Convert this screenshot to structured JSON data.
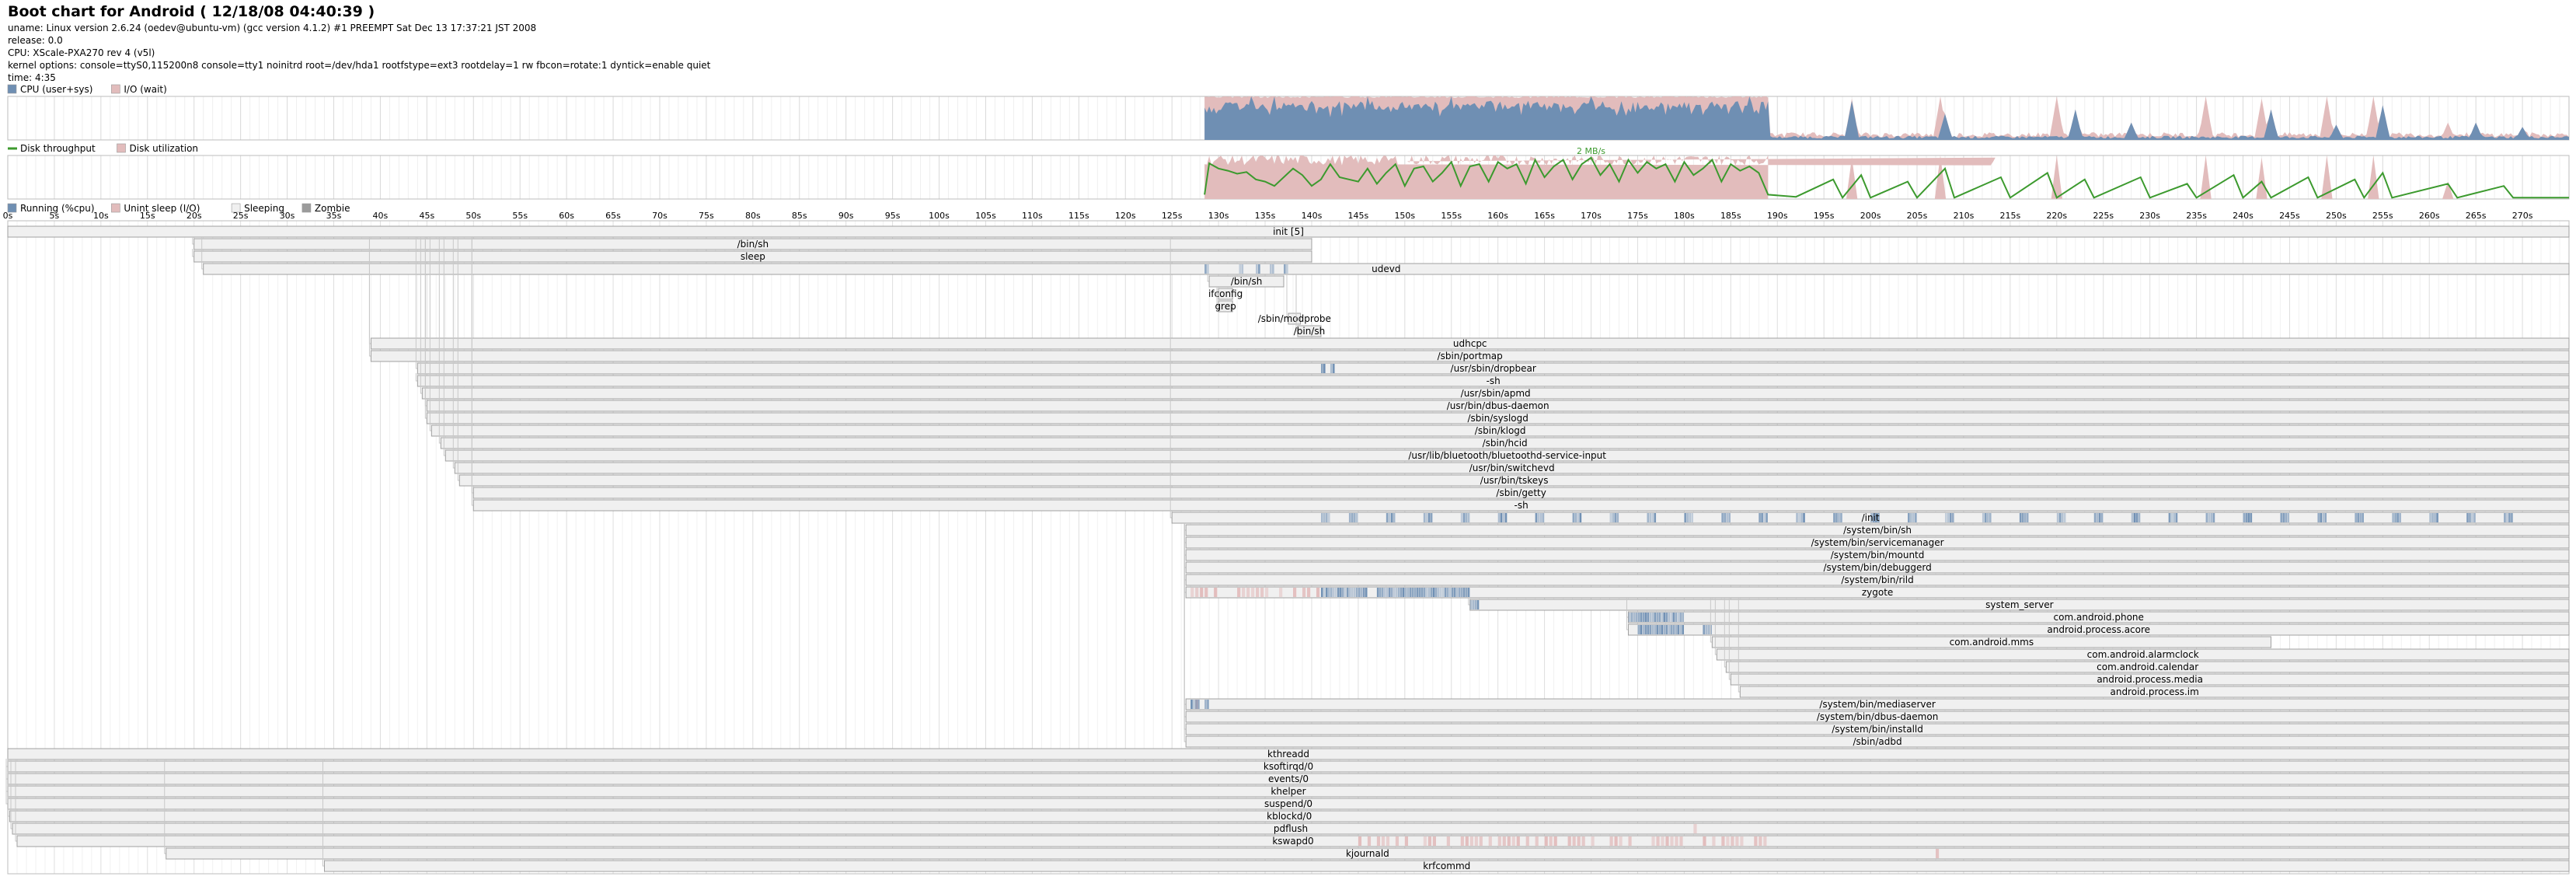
{
  "header": {
    "title": "Boot chart for Android ( 12/18/08 04:40:39 )",
    "uname": "uname: Linux version 2.6.24 (oedev@ubuntu-vm) (gcc version 4.1.2) #1 PREEMPT Sat Dec 13 17:37:21 JST 2008",
    "release": "release: 0.0",
    "cpu": "CPU: XScale-PXA270 rev 4 (v5l)",
    "kernel_options": "kernel options: console=ttyS0,115200n8 console=tty1 noinitrd root=/dev/hda1 rootfstype=ext3 rootdelay=1 rw fbcon=rotate:1 dyntick=enable quiet",
    "time": "time: 4:35"
  },
  "colors": {
    "cpu": "#6f8fb3",
    "io": "#e2bcbc",
    "disk_throughput": "#3c9a2e",
    "disk_util": "#e2bcbc",
    "running": "#6f8fb3",
    "unint_sleep": "#e2bcbc",
    "sleeping": "#f0f0f0",
    "zombie": "#9b9b9b",
    "process_border": "#a0a0a0",
    "grid": "#e6e6e6"
  },
  "chart_data": [
    {
      "type": "area",
      "name": "cpu-io-chart",
      "legend": [
        "CPU (user+sys)",
        "I/O (wait)"
      ],
      "x_unit": "s",
      "xlim": [
        0,
        275
      ],
      "ylim": [
        0,
        100
      ],
      "segments": [
        {
          "from": 128.5,
          "to": 189,
          "cpu_base": 90,
          "io_base": 97,
          "spiky": true
        },
        {
          "from": 189,
          "to": 275,
          "cpu_base": 8,
          "io_base": 12,
          "spiky": false
        }
      ],
      "cpu_peaks": [
        [
          133.5,
          100
        ],
        [
          136,
          100
        ],
        [
          140,
          80
        ],
        [
          146,
          100
        ],
        [
          155,
          100
        ],
        [
          170,
          100
        ],
        [
          187,
          100
        ],
        [
          198,
          90
        ],
        [
          208,
          60
        ],
        [
          222,
          70
        ],
        [
          228,
          40
        ],
        [
          243,
          70
        ],
        [
          250,
          35
        ],
        [
          255,
          80
        ],
        [
          265,
          40
        ],
        [
          270,
          30
        ]
      ],
      "io_peaks": [
        [
          143,
          100
        ],
        [
          152,
          100
        ],
        [
          164,
          100
        ],
        [
          176,
          100
        ],
        [
          198,
          95
        ],
        [
          207.5,
          100
        ],
        [
          220,
          100
        ],
        [
          236,
          100
        ],
        [
          242,
          95
        ],
        [
          249,
          100
        ],
        [
          254,
          100
        ],
        [
          262,
          40
        ]
      ]
    },
    {
      "type": "line",
      "name": "disk-chart",
      "legend": [
        "Disk throughput",
        "Disk utilization"
      ],
      "x_unit": "s",
      "xlim": [
        0,
        275
      ],
      "ylim": [
        0,
        100
      ],
      "max_throughput_label": "2 MB/s",
      "max_throughput_at": 170,
      "points": [
        [
          128.5,
          10
        ],
        [
          129,
          82
        ],
        [
          130,
          70
        ],
        [
          131,
          65
        ],
        [
          132,
          58
        ],
        [
          133,
          62
        ],
        [
          134,
          45
        ],
        [
          135,
          40
        ],
        [
          136,
          30
        ],
        [
          137,
          50
        ],
        [
          138,
          70
        ],
        [
          139,
          55
        ],
        [
          140,
          30
        ],
        [
          141,
          45
        ],
        [
          142,
          80
        ],
        [
          143,
          50
        ],
        [
          144,
          45
        ],
        [
          145,
          40
        ],
        [
          146,
          70
        ],
        [
          147,
          35
        ],
        [
          148,
          60
        ],
        [
          149,
          80
        ],
        [
          150,
          30
        ],
        [
          151,
          70
        ],
        [
          152,
          75
        ],
        [
          153,
          40
        ],
        [
          154,
          60
        ],
        [
          155,
          85
        ],
        [
          156,
          30
        ],
        [
          157,
          75
        ],
        [
          158,
          80
        ],
        [
          159,
          40
        ],
        [
          160,
          85
        ],
        [
          161,
          70
        ],
        [
          162,
          80
        ],
        [
          163,
          35
        ],
        [
          164,
          90
        ],
        [
          165,
          50
        ],
        [
          166,
          75
        ],
        [
          167,
          90
        ],
        [
          168,
          45
        ],
        [
          169,
          80
        ],
        [
          170,
          95
        ],
        [
          171,
          55
        ],
        [
          172,
          80
        ],
        [
          173,
          40
        ],
        [
          174,
          90
        ],
        [
          175,
          60
        ],
        [
          176,
          85
        ],
        [
          177,
          70
        ],
        [
          178,
          80
        ],
        [
          179,
          40
        ],
        [
          180,
          85
        ],
        [
          181,
          55
        ],
        [
          182,
          70
        ],
        [
          183,
          90
        ],
        [
          184,
          40
        ],
        [
          185,
          80
        ],
        [
          186,
          65
        ],
        [
          187,
          75
        ],
        [
          188,
          60
        ],
        [
          189,
          10
        ],
        [
          192,
          5
        ],
        [
          196,
          45
        ],
        [
          197,
          3
        ],
        [
          199,
          55
        ],
        [
          200,
          3
        ],
        [
          204,
          40
        ],
        [
          205,
          3
        ],
        [
          208,
          70
        ],
        [
          209,
          3
        ],
        [
          214,
          50
        ],
        [
          215,
          3
        ],
        [
          219,
          60
        ],
        [
          220,
          3
        ],
        [
          223,
          45
        ],
        [
          224,
          3
        ],
        [
          229,
          50
        ],
        [
          230,
          3
        ],
        [
          234,
          35
        ],
        [
          235,
          3
        ],
        [
          239,
          55
        ],
        [
          240,
          3
        ],
        [
          242,
          40
        ],
        [
          243,
          3
        ],
        [
          247,
          50
        ],
        [
          248,
          3
        ],
        [
          252,
          45
        ],
        [
          253,
          3
        ],
        [
          255,
          60
        ],
        [
          256,
          3
        ],
        [
          262,
          35
        ],
        [
          263,
          3
        ],
        [
          268,
          30
        ],
        [
          269,
          3
        ],
        [
          275,
          3
        ]
      ],
      "utilization_segments": [
        [
          128.5,
          189,
          85
        ],
        [
          189,
          275,
          0
        ]
      ]
    },
    {
      "type": "table",
      "name": "process-timeline",
      "legend": [
        "Running (%cpu)",
        "Unint sleep (I/O)",
        "Sleeping",
        "Zombie"
      ],
      "x_unit": "s",
      "xlim": [
        0,
        275
      ],
      "tick_step": 5,
      "tick_labels": [
        "0s",
        "5s",
        "10s",
        "15s",
        "20s",
        "25s",
        "30s",
        "35s",
        "40s",
        "45s",
        "50s",
        "55s",
        "60s",
        "65s",
        "70s",
        "75s",
        "80s",
        "85s",
        "90s",
        "95s",
        "100s",
        "105s",
        "110s",
        "115s",
        "120s",
        "125s",
        "130s",
        "135s",
        "140s",
        "145s",
        "150s",
        "155s",
        "160s",
        "165s",
        "170s",
        "175s",
        "180s",
        "185s",
        "190s",
        "195s",
        "200s",
        "205s",
        "210s",
        "215s",
        "220s",
        "225s",
        "230s",
        "235s",
        "240s",
        "245s",
        "250s",
        "255s",
        "260s",
        "265s",
        "270s"
      ],
      "processes": [
        {
          "label": "init [5]",
          "start": 0,
          "end": 275,
          "parent": null
        },
        {
          "label": "/bin/sh",
          "start": 20,
          "end": 140,
          "parent": 0
        },
        {
          "label": "sleep",
          "start": 20,
          "end": 140,
          "parent": 1
        },
        {
          "label": "udevd",
          "start": 21,
          "end": 275,
          "parent": 0,
          "run": [
            [
              128.5,
              129
            ],
            [
              132.2,
              132.5
            ],
            [
              134,
              134.3
            ],
            [
              135.5,
              135.8
            ],
            [
              137,
              137.3
            ]
          ]
        },
        {
          "label": "/bin/sh",
          "start": 129,
          "end": 137,
          "parent": 3
        },
        {
          "label": "ifconfig",
          "start": 130,
          "end": 131.5,
          "parent": 4
        },
        {
          "label": "grep",
          "start": 130,
          "end": 131.5,
          "parent": 4
        },
        {
          "label": "/sbin/modprobe",
          "start": 137.5,
          "end": 138.8,
          "parent": 3
        },
        {
          "label": "/bin/sh",
          "start": 138.5,
          "end": 141,
          "parent": 3
        },
        {
          "label": "udhcpc",
          "start": 39,
          "end": 275,
          "parent": 0
        },
        {
          "label": "/sbin/portmap",
          "start": 39,
          "end": 275,
          "parent": 0
        },
        {
          "label": "/usr/sbin/dropbear",
          "start": 44,
          "end": 275,
          "parent": 0,
          "run": [
            [
              141,
              141.5
            ],
            [
              142,
              142.5
            ]
          ]
        },
        {
          "label": "-sh",
          "start": 44,
          "end": 275,
          "parent": 11
        },
        {
          "label": "/usr/sbin/apmd",
          "start": 44.5,
          "end": 275,
          "parent": 0
        },
        {
          "label": "/usr/bin/dbus-daemon",
          "start": 45,
          "end": 275,
          "parent": 0
        },
        {
          "label": "/sbin/syslogd",
          "start": 45,
          "end": 275,
          "parent": 0
        },
        {
          "label": "/sbin/klogd",
          "start": 45.5,
          "end": 275,
          "parent": 0
        },
        {
          "label": "/sbin/hcid",
          "start": 46.5,
          "end": 275,
          "parent": 0
        },
        {
          "label": "/usr/lib/bluetooth/bluetoothd-service-input",
          "start": 47,
          "end": 275,
          "parent": 0
        },
        {
          "label": "/usr/bin/switchevd",
          "start": 48,
          "end": 275,
          "parent": 0
        },
        {
          "label": "/usr/bin/tskeys",
          "start": 48.5,
          "end": 275,
          "parent": 0
        },
        {
          "label": "/sbin/getty",
          "start": 50,
          "end": 275,
          "parent": 0
        },
        {
          "label": "-sh",
          "start": 50,
          "end": 275,
          "parent": 0
        },
        {
          "label": "/init",
          "start": 125,
          "end": 275,
          "parent": 0,
          "run": [
            [
              141,
              142
            ],
            [
              144,
              145
            ],
            [
              148,
              149
            ],
            [
              152,
              153
            ],
            [
              156,
              157
            ],
            [
              160,
              161
            ],
            [
              164,
              165
            ],
            [
              168,
              169
            ],
            [
              172,
              173
            ],
            [
              176,
              177
            ],
            [
              180,
              181
            ],
            [
              184,
              185
            ],
            [
              188,
              189
            ],
            [
              192,
              193
            ],
            [
              196,
              197
            ],
            [
              200,
              201
            ],
            [
              204,
              205
            ],
            [
              208,
              209
            ],
            [
              212,
              213
            ],
            [
              216,
              217
            ],
            [
              220,
              221
            ],
            [
              224,
              225
            ],
            [
              228,
              229
            ],
            [
              232,
              233
            ],
            [
              236,
              237
            ],
            [
              240,
              241
            ],
            [
              244,
              245
            ],
            [
              248,
              249
            ],
            [
              252,
              253
            ],
            [
              256,
              257
            ],
            [
              260,
              261
            ],
            [
              264,
              265
            ],
            [
              268,
              269
            ]
          ]
        },
        {
          "label": "/system/bin/sh",
          "start": 126.5,
          "end": 275,
          "parent": 23
        },
        {
          "label": "/system/bin/servicemanager",
          "start": 126.5,
          "end": 275,
          "parent": 23
        },
        {
          "label": "/system/bin/mountd",
          "start": 126.5,
          "end": 275,
          "parent": 23
        },
        {
          "label": "/system/bin/debuggerd",
          "start": 126.5,
          "end": 275,
          "parent": 23
        },
        {
          "label": "/system/bin/rild",
          "start": 126.5,
          "end": 275,
          "parent": 23
        },
        {
          "label": "zygote",
          "start": 126.5,
          "end": 275,
          "parent": 23,
          "run": [
            [
              141,
              146
            ],
            [
              147,
              157
            ]
          ],
          "io": [
            [
              127,
              141
            ]
          ]
        },
        {
          "label": "system_server",
          "start": 157,
          "end": 275,
          "parent": 29,
          "run": [
            [
              157,
              158
            ]
          ]
        },
        {
          "label": "com.android.phone",
          "start": 174,
          "end": 275,
          "parent": 29,
          "run": [
            [
              174,
              180
            ]
          ]
        },
        {
          "label": "android.process.acore",
          "start": 174,
          "end": 275,
          "parent": 29,
          "run": [
            [
              175,
              180
            ],
            [
              182,
              183
            ]
          ]
        },
        {
          "label": "com.android.mms",
          "start": 183,
          "end": 243,
          "parent": 29
        },
        {
          "label": "com.android.alarmclock",
          "start": 183.5,
          "end": 275,
          "parent": 29
        },
        {
          "label": "com.android.calendar",
          "start": 184.5,
          "end": 275,
          "parent": 29
        },
        {
          "label": "android.process.media",
          "start": 185,
          "end": 275,
          "parent": 29
        },
        {
          "label": "android.process.im",
          "start": 186,
          "end": 275,
          "parent": 29
        },
        {
          "label": "/system/bin/mediaserver",
          "start": 126.5,
          "end": 275,
          "parent": 23,
          "run": [
            [
              127,
              128
            ],
            [
              128.5,
              129
            ]
          ],
          "io": [
            [
              127.5,
              128.5
            ]
          ]
        },
        {
          "label": "/system/bin/dbus-daemon",
          "start": 126.5,
          "end": 275,
          "parent": 23
        },
        {
          "label": "/system/bin/installd",
          "start": 126.5,
          "end": 275,
          "parent": 23
        },
        {
          "label": "/sbin/adbd",
          "start": 126.5,
          "end": 275,
          "parent": 23
        },
        {
          "label": "kthreadd",
          "start": 0,
          "end": 275,
          "parent": null
        },
        {
          "label": "ksoftirqd/0",
          "start": 0,
          "end": 275,
          "parent": 42
        },
        {
          "label": "events/0",
          "start": 0,
          "end": 275,
          "parent": 42
        },
        {
          "label": "khelper",
          "start": 0,
          "end": 275,
          "parent": 42
        },
        {
          "label": "suspend/0",
          "start": 0,
          "end": 275,
          "parent": 42
        },
        {
          "label": "kblockd/0",
          "start": 0.2,
          "end": 275,
          "parent": 42
        },
        {
          "label": "pdflush",
          "start": 0.5,
          "end": 275,
          "parent": 42,
          "io": [
            [
              181,
              181.5
            ]
          ]
        },
        {
          "label": "kswapd0",
          "start": 1,
          "end": 275,
          "parent": 42,
          "io": [
            [
              145,
              190
            ]
          ]
        },
        {
          "label": "kjournald",
          "start": 17,
          "end": 275,
          "parent": 42,
          "io": [
            [
              130,
              130.5
            ],
            [
              176,
              176.5
            ],
            [
              207,
              207.5
            ],
            [
              258,
              258.5
            ]
          ]
        },
        {
          "label": "krfcommd",
          "start": 34,
          "end": 275,
          "parent": 42
        }
      ]
    }
  ]
}
